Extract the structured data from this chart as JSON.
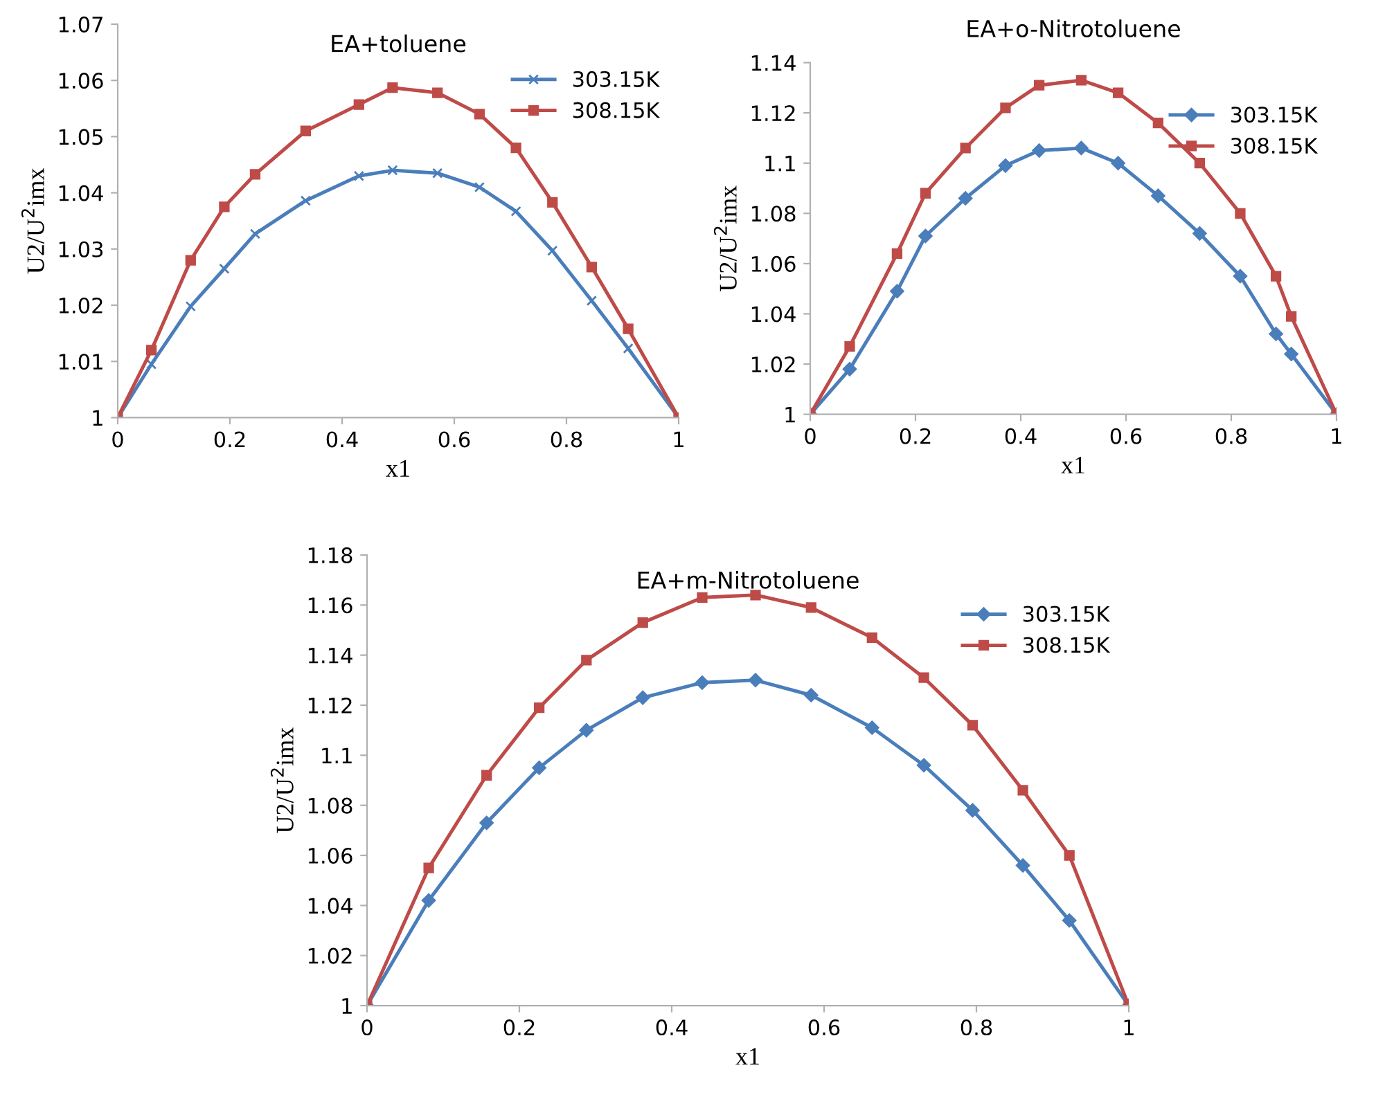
{
  "chart_data": [
    {
      "type": "line",
      "title": "EA+toluene",
      "xlabel": "x1",
      "ylabel": "U2/U$^{2}$imx",
      "xlim": [
        0,
        1
      ],
      "xticks": [
        0,
        0.2,
        0.4,
        0.6,
        0.8,
        1
      ],
      "ylim": [
        1,
        1.07
      ],
      "yticks": [
        1,
        1.01,
        1.02,
        1.03,
        1.04,
        1.05,
        1.06,
        1.07
      ],
      "grid": false,
      "legend": "top right",
      "x": [
        0,
        0.06,
        0.13,
        0.19,
        0.245,
        0.335,
        0.43,
        0.49,
        0.57,
        0.645,
        0.71,
        0.775,
        0.845,
        0.91,
        1
      ],
      "series": [
        {
          "name": "303.15K",
          "color": "#4a7ebb",
          "marker": "cross",
          "values": [
            1,
            1.0095,
            1.0198,
            1.0265,
            1.0327,
            1.0386,
            1.043,
            1.044,
            1.0435,
            1.041,
            1.0367,
            1.0297,
            1.0208,
            1.0123,
            1
          ]
        },
        {
          "name": "308.15K",
          "color": "#be4b48",
          "marker": "square",
          "values": [
            1,
            1.012,
            1.028,
            1.0375,
            1.0433,
            1.051,
            1.0557,
            1.0587,
            1.0578,
            1.054,
            1.048,
            1.0383,
            1.0268,
            1.0158,
            1
          ]
        }
      ]
    },
    {
      "type": "line",
      "title": "EA+o-Nitrotoluene",
      "xlabel": "x1",
      "ylabel": "U2/U$^{2}$imx",
      "xlim": [
        0,
        1
      ],
      "xticks": [
        0,
        0.2,
        0.4,
        0.6,
        0.8,
        1
      ],
      "ylim": [
        1,
        1.14
      ],
      "yticks": [
        1,
        1.02,
        1.04,
        1.06,
        1.08,
        1.1,
        1.12,
        1.14
      ],
      "grid": false,
      "legend": "top right",
      "x": [
        0,
        0.075,
        0.165,
        0.219,
        0.295,
        0.371,
        0.435,
        0.515,
        0.585,
        0.661,
        0.74,
        0.817,
        0.885,
        0.914,
        1
      ],
      "series": [
        {
          "name": "303.15K",
          "color": "#4a7ebb",
          "marker": "diamond",
          "values": [
            1,
            1.018,
            1.049,
            1.071,
            1.086,
            1.099,
            1.105,
            1.106,
            1.1,
            1.087,
            1.072,
            1.055,
            1.032,
            1.024,
            1
          ]
        },
        {
          "name": "308.15K",
          "color": "#be4b48",
          "marker": "square",
          "values": [
            1,
            1.027,
            1.064,
            1.088,
            1.106,
            1.122,
            1.131,
            1.133,
            1.128,
            1.116,
            1.1,
            1.08,
            1.055,
            1.039,
            1
          ]
        }
      ]
    },
    {
      "type": "line",
      "title": "EA+m-Nitrotoluene",
      "xlabel": "x1",
      "ylabel": "U2/U$^{2}$imx",
      "xlim": [
        0,
        1
      ],
      "xticks": [
        0,
        0.2,
        0.4,
        0.6,
        0.8,
        1
      ],
      "ylim": [
        1,
        1.18
      ],
      "yticks": [
        1,
        1.02,
        1.04,
        1.06,
        1.08,
        1.1,
        1.12,
        1.14,
        1.16,
        1.18
      ],
      "grid": false,
      "legend": "top right",
      "x": [
        0,
        0.081,
        0.157,
        0.226,
        0.288,
        0.362,
        0.44,
        0.51,
        0.583,
        0.663,
        0.731,
        0.795,
        0.861,
        0.922,
        1
      ],
      "series": [
        {
          "name": "303.15K",
          "color": "#4a7ebb",
          "marker": "diamond",
          "values": [
            1,
            1.042,
            1.073,
            1.095,
            1.11,
            1.123,
            1.129,
            1.13,
            1.124,
            1.111,
            1.096,
            1.078,
            1.056,
            1.034,
            1
          ]
        },
        {
          "name": "308.15K",
          "color": "#be4b48",
          "marker": "square",
          "values": [
            1,
            1.055,
            1.092,
            1.119,
            1.138,
            1.153,
            1.163,
            1.164,
            1.159,
            1.147,
            1.131,
            1.112,
            1.086,
            1.06,
            1
          ]
        }
      ]
    }
  ]
}
